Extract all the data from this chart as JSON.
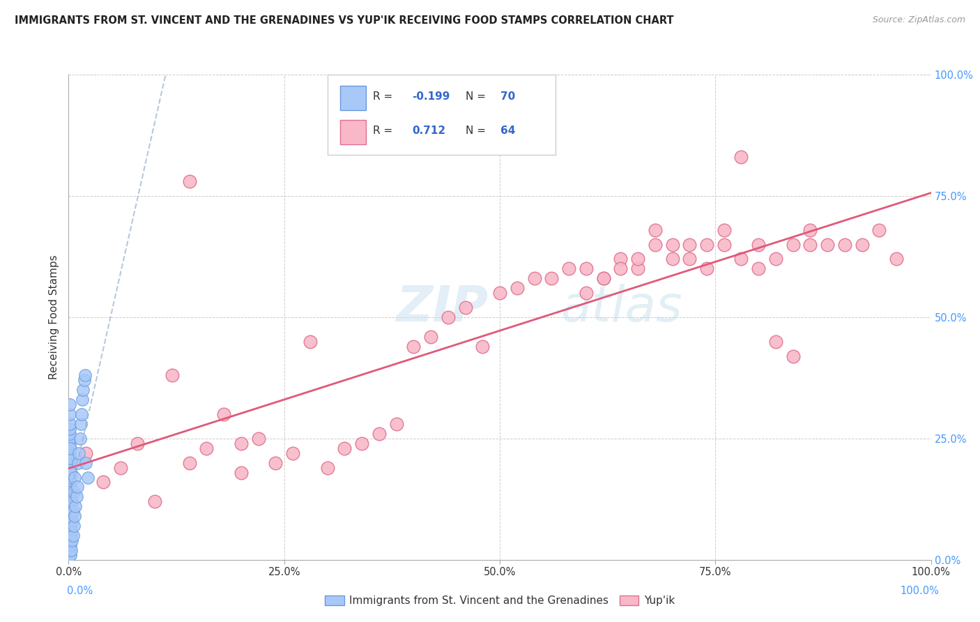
{
  "title": "IMMIGRANTS FROM ST. VINCENT AND THE GRENADINES VS YUP'IK RECEIVING FOOD STAMPS CORRELATION CHART",
  "source": "Source: ZipAtlas.com",
  "ylabel": "Receiving Food Stamps",
  "xlim": [
    0,
    1.0
  ],
  "ylim": [
    0,
    1.0
  ],
  "xtick_positions": [
    0.0,
    0.25,
    0.5,
    0.75,
    1.0
  ],
  "xtick_labels": [
    "0.0%",
    "25.0%",
    "50.0%",
    "75.0%",
    "100.0%"
  ],
  "ytick_positions": [
    0.0,
    0.25,
    0.5,
    0.75,
    1.0
  ],
  "ytick_labels": [
    "0.0%",
    "25.0%",
    "50.0%",
    "75.0%",
    "100.0%"
  ],
  "grid_color": "#cccccc",
  "background_color": "#ffffff",
  "watermark_zip": "ZIP",
  "watermark_atlas": "atlas",
  "series1_color": "#a8c8f8",
  "series1_edge": "#6699dd",
  "series2_color": "#f8b8c8",
  "series2_edge": "#e07090",
  "line1_color": "#9ab0d0",
  "line2_color": "#e05878",
  "series1_label": "Immigrants from St. Vincent and the Grenadines",
  "series2_label": "Yup'ik",
  "legend_r1_text": "R = ",
  "legend_r1_val": "-0.199",
  "legend_n1_text": "N = ",
  "legend_n1_val": "70",
  "legend_r2_text": "R =  ",
  "legend_r2_val": "0.712",
  "legend_n2_text": "N = ",
  "legend_n2_val": "64",
  "series1_x": [
    0.001,
    0.001,
    0.001,
    0.001,
    0.001,
    0.001,
    0.001,
    0.001,
    0.001,
    0.001,
    0.001,
    0.001,
    0.001,
    0.001,
    0.001,
    0.001,
    0.001,
    0.001,
    0.001,
    0.001,
    0.001,
    0.001,
    0.001,
    0.001,
    0.001,
    0.001,
    0.001,
    0.001,
    0.001,
    0.001,
    0.002,
    0.002,
    0.002,
    0.002,
    0.002,
    0.002,
    0.002,
    0.002,
    0.002,
    0.002,
    0.002,
    0.002,
    0.003,
    0.003,
    0.003,
    0.003,
    0.003,
    0.004,
    0.004,
    0.004,
    0.005,
    0.005,
    0.006,
    0.006,
    0.007,
    0.007,
    0.008,
    0.009,
    0.01,
    0.011,
    0.012,
    0.013,
    0.014,
    0.015,
    0.016,
    0.017,
    0.018,
    0.019,
    0.02,
    0.022
  ],
  "series1_y": [
    0.01,
    0.02,
    0.03,
    0.04,
    0.05,
    0.06,
    0.07,
    0.08,
    0.09,
    0.1,
    0.11,
    0.12,
    0.13,
    0.14,
    0.15,
    0.16,
    0.17,
    0.18,
    0.19,
    0.2,
    0.21,
    0.22,
    0.23,
    0.24,
    0.25,
    0.26,
    0.27,
    0.28,
    0.3,
    0.32,
    0.01,
    0.03,
    0.05,
    0.07,
    0.09,
    0.11,
    0.13,
    0.15,
    0.17,
    0.19,
    0.21,
    0.23,
    0.02,
    0.06,
    0.1,
    0.14,
    0.18,
    0.04,
    0.08,
    0.12,
    0.05,
    0.1,
    0.07,
    0.14,
    0.09,
    0.17,
    0.11,
    0.13,
    0.15,
    0.2,
    0.22,
    0.25,
    0.28,
    0.3,
    0.33,
    0.35,
    0.37,
    0.38,
    0.2,
    0.17
  ],
  "series2_x": [
    0.02,
    0.04,
    0.06,
    0.08,
    0.1,
    0.12,
    0.14,
    0.14,
    0.16,
    0.18,
    0.2,
    0.2,
    0.22,
    0.24,
    0.26,
    0.28,
    0.3,
    0.32,
    0.34,
    0.36,
    0.38,
    0.4,
    0.42,
    0.44,
    0.46,
    0.48,
    0.5,
    0.52,
    0.54,
    0.56,
    0.58,
    0.6,
    0.62,
    0.64,
    0.66,
    0.68,
    0.7,
    0.72,
    0.74,
    0.76,
    0.78,
    0.8,
    0.82,
    0.84,
    0.86,
    0.88,
    0.9,
    0.92,
    0.94,
    0.96,
    0.6,
    0.62,
    0.64,
    0.66,
    0.68,
    0.7,
    0.72,
    0.74,
    0.76,
    0.78,
    0.8,
    0.82,
    0.84,
    0.86
  ],
  "series2_y": [
    0.22,
    0.16,
    0.19,
    0.24,
    0.12,
    0.38,
    0.78,
    0.2,
    0.23,
    0.3,
    0.18,
    0.24,
    0.25,
    0.2,
    0.22,
    0.45,
    0.19,
    0.23,
    0.24,
    0.26,
    0.28,
    0.44,
    0.46,
    0.5,
    0.52,
    0.44,
    0.55,
    0.56,
    0.58,
    0.58,
    0.6,
    0.6,
    0.58,
    0.62,
    0.6,
    0.68,
    0.65,
    0.62,
    0.65,
    0.68,
    0.83,
    0.6,
    0.62,
    0.65,
    0.68,
    0.65,
    0.65,
    0.65,
    0.68,
    0.62,
    0.55,
    0.58,
    0.6,
    0.62,
    0.65,
    0.62,
    0.65,
    0.6,
    0.65,
    0.62,
    0.65,
    0.45,
    0.42,
    0.65
  ]
}
